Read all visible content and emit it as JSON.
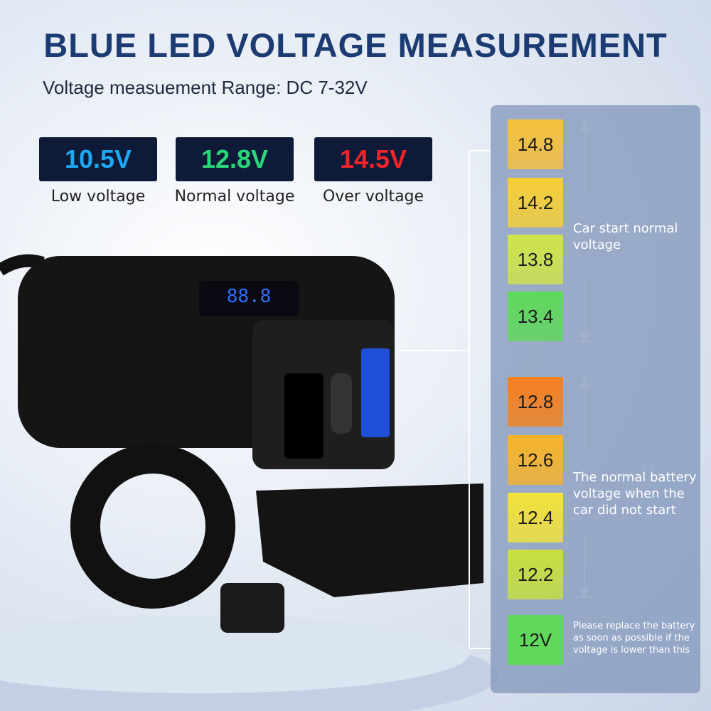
{
  "header": {
    "title": "BLUE LED VOLTAGE MEASUREMENT",
    "subtitle": "Voltage measuement Range: DC 7-32V"
  },
  "displays": [
    {
      "reading": "10.5V",
      "label": "Low voltage",
      "color": "#1ea8f0"
    },
    {
      "reading": "12.8V",
      "label": "Normal voltage",
      "color": "#2bd67b"
    },
    {
      "reading": "14.5V",
      "label": "Over voltage",
      "color": "#f0242a"
    }
  ],
  "scale": {
    "groups": [
      {
        "note": "Car start normal voltage",
        "levels": [
          {
            "label": "14.8",
            "color": "#f7c23c"
          },
          {
            "label": "14.2",
            "color": "#f6cf36"
          },
          {
            "label": "13.8",
            "color": "#cfe44a"
          },
          {
            "label": "13.4",
            "color": "#5fd85b"
          }
        ]
      },
      {
        "note": "The normal battery voltage when the car did not start",
        "levels": [
          {
            "label": "12.8",
            "color": "#f5801f"
          },
          {
            "label": "12.6",
            "color": "#f6b42b"
          },
          {
            "label": "12.4",
            "color": "#f2e23a"
          },
          {
            "label": "12.2",
            "color": "#c6e03f"
          }
        ]
      }
    ],
    "warning": {
      "label": "12V",
      "color": "#5fd85b",
      "note": "Please replace the battery as soon as possible if the voltage is lower than this"
    }
  }
}
